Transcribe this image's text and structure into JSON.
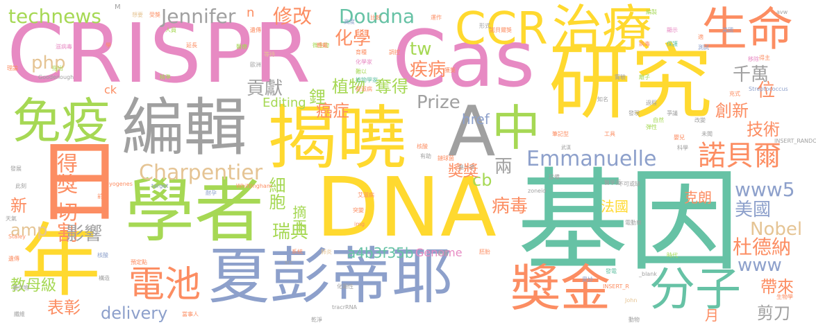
{
  "colors": {
    "pink": "#e78ac3",
    "gold": "#fdd835",
    "green": "#a6d854",
    "teal": "#66c2a5",
    "orange": "#fc8d62",
    "blue": "#8da0cb",
    "gray": "#a0a0a0",
    "tan": "#e5c494",
    "yellow": "#ffd92f"
  },
  "words": [
    "CRISPR",
    "Cas",
    "基因",
    "研究",
    "DNA",
    "揭曉",
    "學者",
    "夏彭蒂耶",
    "日",
    "年",
    "編輯",
    "治療",
    "生命",
    "免疫",
    "中",
    "A",
    "CCR",
    "獎金",
    "分子",
    "電池",
    "得獎",
    "切割",
    "technews",
    "Jennifer",
    "修改",
    "Doudna",
    "諾貝爾",
    "Emmanuelle",
    "Charpentier",
    "化學",
    "疾病",
    "tw",
    "php",
    "貢獻",
    "千萬",
    "鋰",
    "植物",
    "奪得",
    "Prize",
    "Editing",
    "癌症",
    "創新",
    "位",
    "技術",
    "href",
    "兩",
    "www5",
    "cb",
    "獎獎",
    "細胞",
    "新",
    "amp",
    "影響",
    "摘下",
    "瑞典",
    "病毒",
    "法國",
    "美國",
    "克朗",
    "Nobel",
    "杜德納",
    "www",
    "a4b3f35b",
    "Genome",
    "教母級",
    "表彰",
    "delivery",
    "帶來",
    "月",
    "剪刀",
    "ck",
    "n",
    "M",
    "想要",
    "受獎",
    "人員",
    "延長",
    "醫療",
    "遺傳",
    "滋病毒",
    "學",
    "微生物",
    "育種",
    "化學家",
    "難以",
    "植物學家",
    "愛滋病",
    "運作",
    "形式",
    "諾貝爾獎",
    "編製",
    "病毒",
    "保護",
    "指出",
    "等待",
    "歐洲",
    "調控",
    "獲獎",
    "離子",
    "美國",
    "得主",
    "理論",
    "精準",
    "轉載",
    "高度",
    "比較",
    "顯示",
    "適",
    "測試",
    "移除",
    "Goodenough",
    "實驗",
    "Streptococcus",
    "知名",
    "過程",
    "充式",
    "改變",
    "爭議",
    "自然",
    "發現",
    "弾性",
    "未聞",
    "嬰兒",
    "筆記型",
    "工具",
    "科學",
    "INSERT_RANDOM_NUMBER_HERE",
    "武漢",
    "核酸",
    "有助",
    "鏈球菌",
    "發展",
    "進一步",
    "此刻",
    "pyogenes",
    "target",
    "耐孕",
    "Whittingham",
    "zoneid",
    "醫學面",
    "設備",
    "不可或缺",
    "前所",
    "藉由",
    "艾滋病",
    "突變",
    "img",
    "電動車",
    "Staley",
    "核酸",
    "遺傳",
    "系統",
    "時代",
    "肺炎",
    "src",
    "病菌",
    "胚胎",
    "發電",
    "_blank",
    "化顯性",
    "tracrRNA",
    "John",
    "生物學",
    "動物",
    "奧妙",
    "INSERT_R",
    "纖維",
    "當事人",
    "農作物",
    "乾淨",
    "預定點",
    "構造"
  ],
  "texts": [
    "avw",
    "天氣"
  ]
}
